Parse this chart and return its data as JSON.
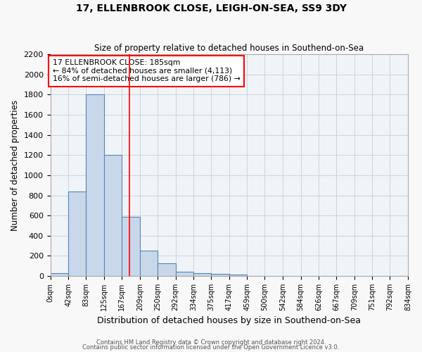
{
  "title": "17, ELLENBROOK CLOSE, LEIGH-ON-SEA, SS9 3DY",
  "subtitle": "Size of property relative to detached houses in Southend-on-Sea",
  "xlabel": "Distribution of detached houses by size in Southend-on-Sea",
  "ylabel": "Number of detached properties",
  "footer1": "Contains HM Land Registry data © Crown copyright and database right 2024.",
  "footer2": "Contains public sector information licensed under the Open Government Licence v3.0.",
  "bin_edges": [
    0,
    42,
    83,
    125,
    167,
    209,
    250,
    292,
    334,
    375,
    417,
    459,
    500,
    542,
    584,
    626,
    667,
    709,
    751,
    792,
    834
  ],
  "bar_heights": [
    25,
    840,
    1800,
    1200,
    590,
    255,
    125,
    45,
    30,
    20,
    15,
    0,
    0,
    0,
    0,
    0,
    0,
    0,
    0,
    0
  ],
  "bar_color": "#c8d8ea",
  "bar_edge_color": "#5585b5",
  "red_line_x": 185,
  "annotation_text_line1": "17 ELLENBROOK CLOSE: 185sqm",
  "annotation_text_line2": "← 84% of detached houses are smaller (4,113)",
  "annotation_text_line3": "16% of semi-detached houses are larger (786) →",
  "ylim": [
    0,
    2200
  ],
  "background_color": "#f8f8f8",
  "plot_bg_color": "#f0f4f9",
  "grid_color": "#c8d4e0"
}
